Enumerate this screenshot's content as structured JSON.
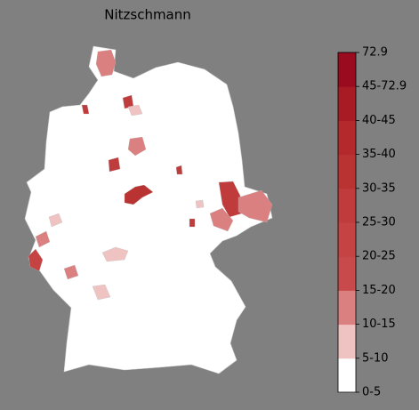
{
  "title": "Nitzschmann",
  "legend": {
    "labels": [
      "0-5",
      "5-10",
      "10-15",
      "15-20",
      "20-25",
      "25-30",
      "30-35",
      "35-40",
      "40-45",
      "45-72.9",
      "72.9"
    ],
    "colors": [
      "#ffffff",
      "#f0c3c3",
      "#db8080",
      "#c94a4a",
      "#c54343",
      "#c03b3b",
      "#ba3333",
      "#b42a2c",
      "#a81b25",
      "#9a0b1f"
    ]
  }
}
